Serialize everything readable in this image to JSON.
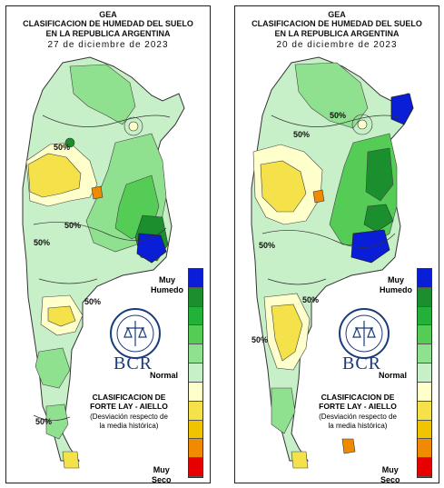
{
  "panels": [
    {
      "org": "GEA",
      "title_line1": "CLASIFICACION DE HUMEDAD DEL SUELO",
      "title_line2": "EN LA REPUBLICA ARGENTINA",
      "date": "27 de diciembre de 2023",
      "iso_labels": [
        "50%",
        "50%",
        "50%",
        "50%",
        "50%"
      ]
    },
    {
      "org": "GEA",
      "title_line1": "CLASIFICACION DE HUMEDAD DEL SUELO",
      "title_line2": "EN LA REPUBLICA ARGENTINA",
      "date": "20 de diciembre de 2023",
      "iso_labels": [
        "50%",
        "50%",
        "50%",
        "50%",
        "50%"
      ]
    }
  ],
  "legend": {
    "top_line1": "Muy",
    "top_line2": "Humedo",
    "middle": "Normal",
    "bottom_line1": "Muy",
    "bottom_line2": "Seco",
    "colors": [
      "#0a1ed8",
      "#1b8f2e",
      "#22b23a",
      "#55cc55",
      "#8fe08f",
      "#c8f0c8",
      "#ffffcc",
      "#f5e24a",
      "#f0c400",
      "#f08a00",
      "#e60000"
    ]
  },
  "classification": {
    "title_line1": "CLASIFICACION DE",
    "title_line2": "FORTE LAY - AIELLO",
    "note_line1": "(Desviación respecto de",
    "note_line2": "la media histórica)"
  },
  "brand": {
    "logo_text": "BCR",
    "seal_text": "BOLSA DE COMERCIO DE ROSARIO"
  }
}
